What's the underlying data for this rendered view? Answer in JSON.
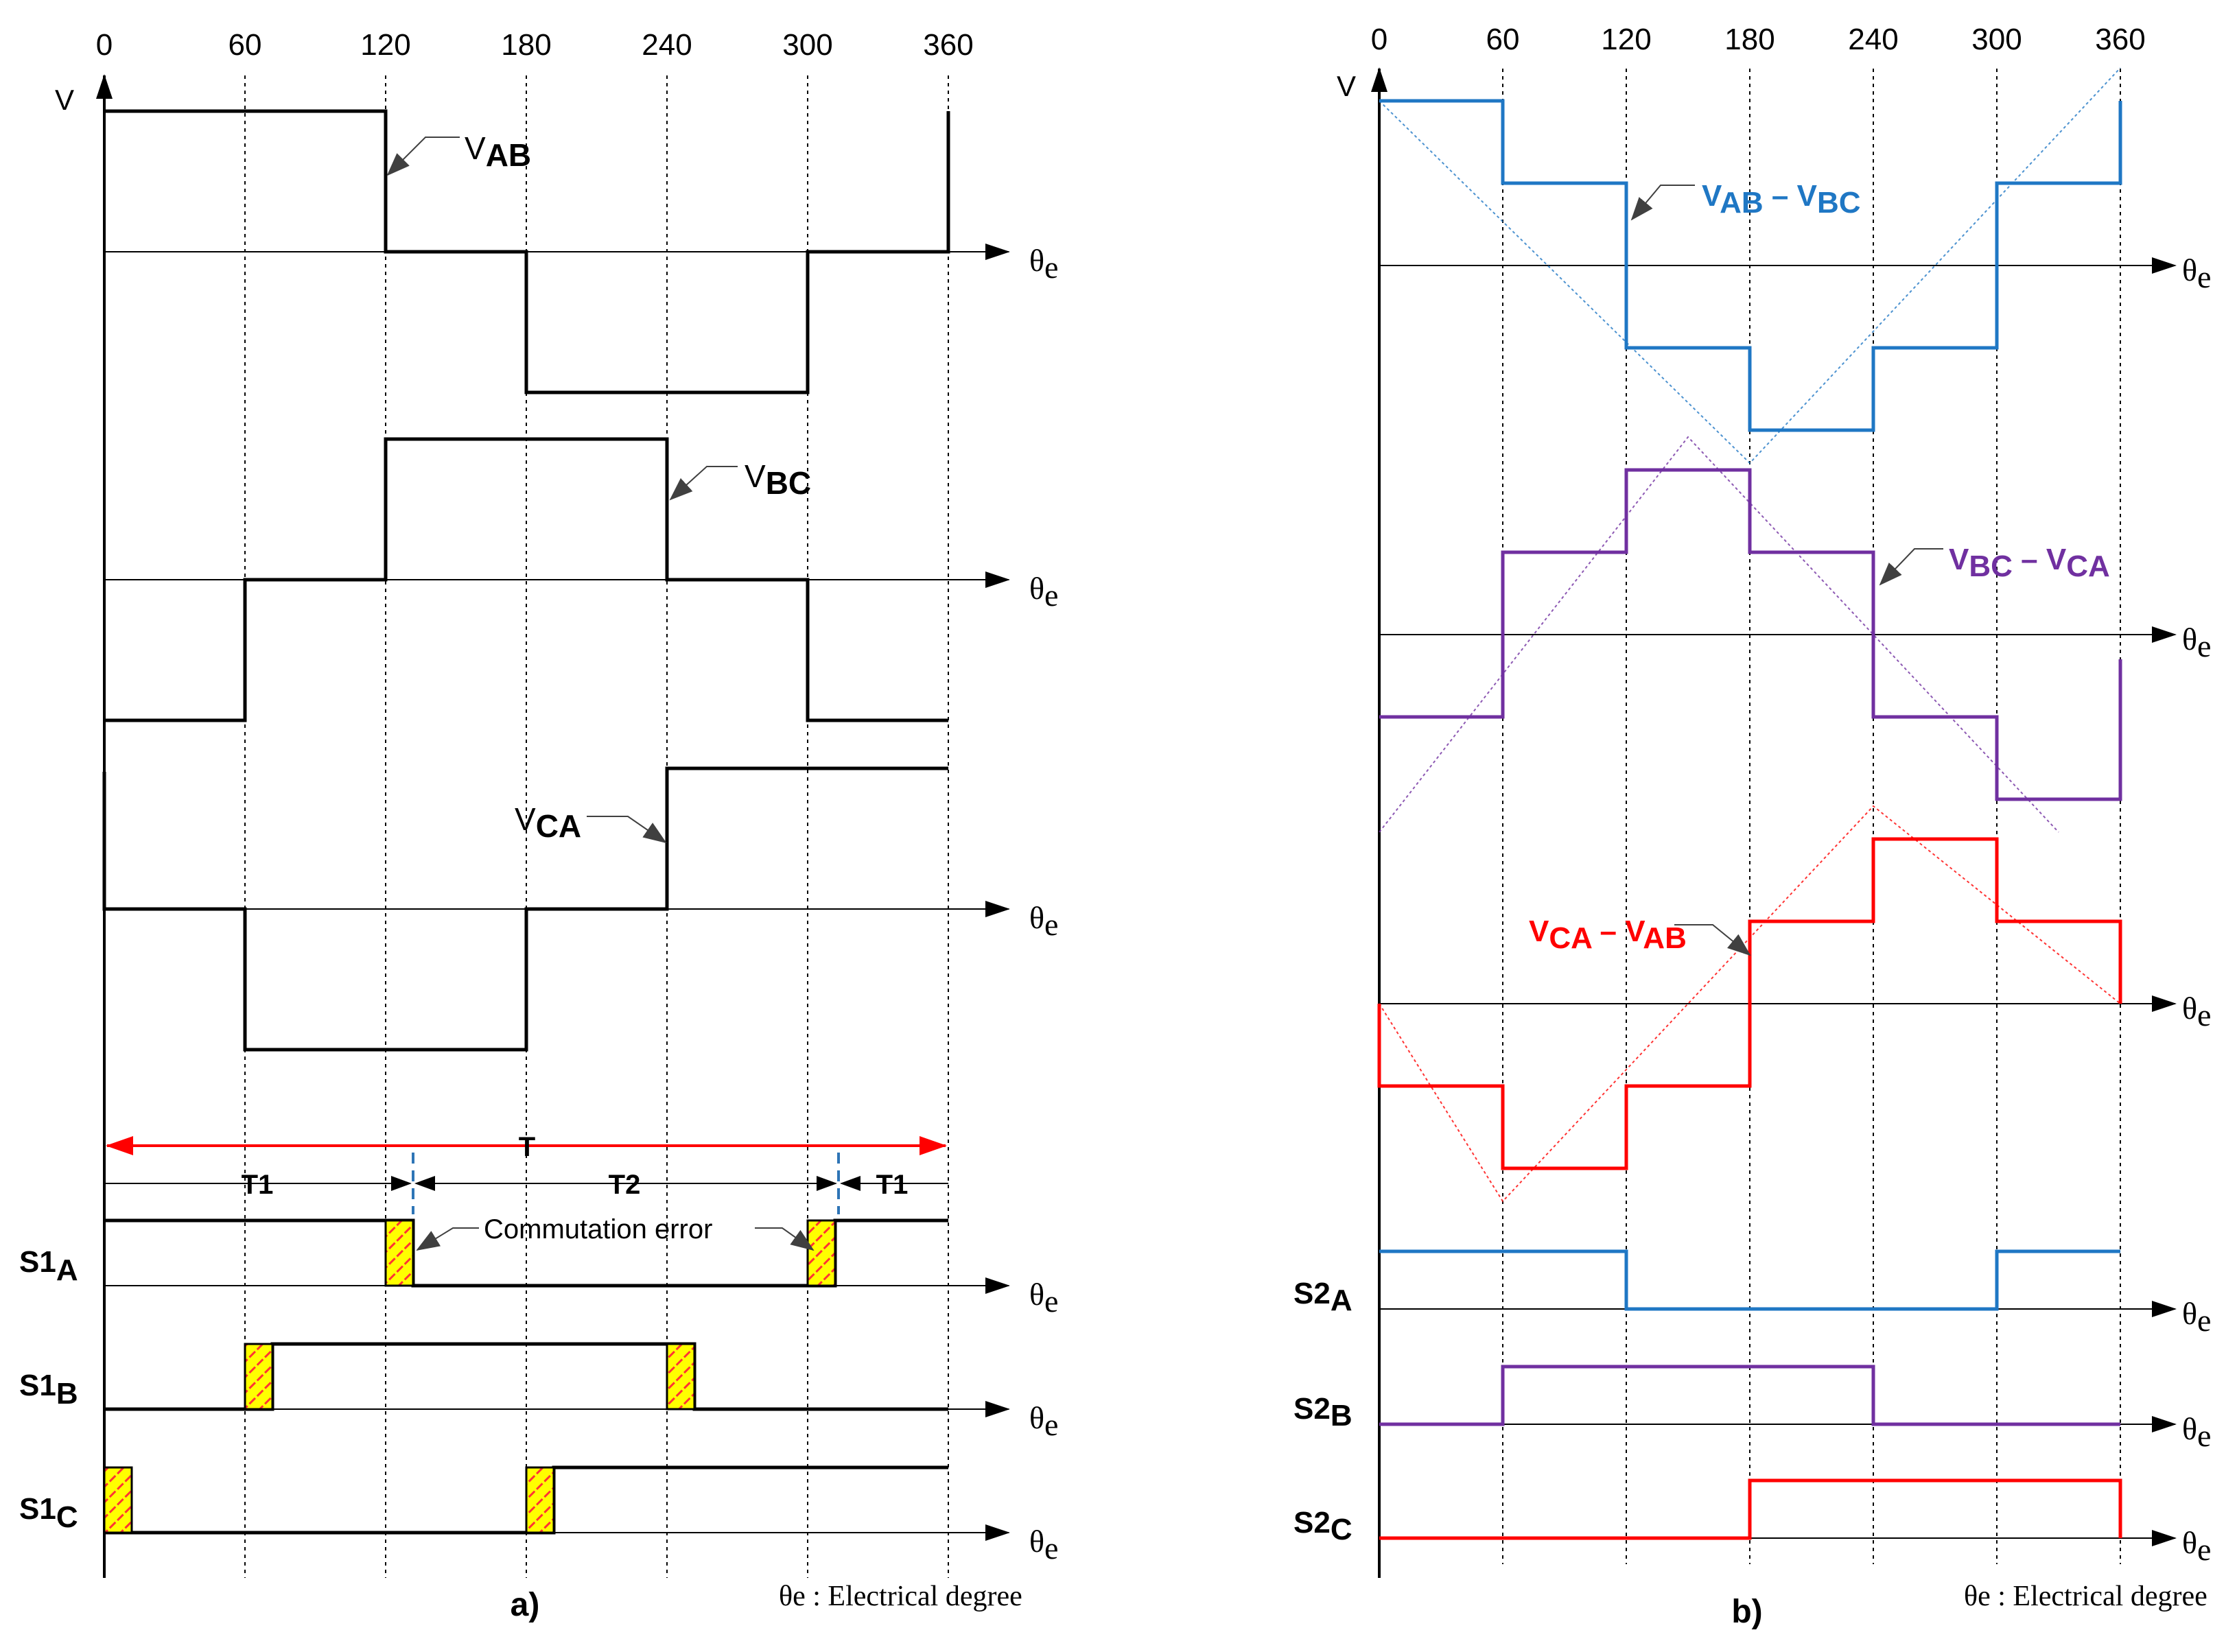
{
  "angles": [
    "0",
    "60",
    "120",
    "180",
    "240",
    "300",
    "360"
  ],
  "v_label": "V",
  "theta_label": "θ",
  "theta_sub": "e",
  "colors": {
    "blue": "#1f77c4",
    "purple": "#7030a0",
    "red": "#ff0000",
    "black": "#000000",
    "hatch_fill": "#ffff00",
    "hatch_line": "#ff3333",
    "period_arrow": "#ff0000",
    "marker": "#2e75b6"
  },
  "panel_a": {
    "caption": "a)",
    "footnote": "θe : Electrical degree",
    "waves": [
      {
        "main": "V",
        "sub": "AB",
        "levels": [
          1,
          1,
          0,
          -1,
          -1,
          0,
          1
        ]
      },
      {
        "main": "V",
        "sub": "BC",
        "levels": [
          -1,
          0,
          1,
          1,
          0,
          -1
        ]
      },
      {
        "main": "V",
        "sub": "CA",
        "levels": [
          0,
          -1,
          -1,
          0,
          1,
          1
        ]
      }
    ],
    "period": {
      "total": "T",
      "t1": "T1",
      "t2": "T2",
      "t1_end": "T1"
    },
    "error_label": "Commutation error",
    "switches": [
      {
        "main": "S1",
        "sub": "A",
        "states": [
          1,
          1,
          0,
          0,
          0,
          1
        ]
      },
      {
        "main": "S1",
        "sub": "B",
        "states": [
          0,
          1,
          1,
          1,
          0,
          0
        ]
      },
      {
        "main": "S1",
        "sub": "C",
        "states": [
          0,
          0,
          0,
          1,
          1,
          1
        ]
      }
    ]
  },
  "panel_b": {
    "caption": "b)",
    "footnote": "θe : Electrical degree",
    "waves": [
      {
        "t1": "V",
        "s1": "AB",
        "t2": "– V",
        "s2": "BC",
        "color": "blue",
        "levels": [
          2,
          1,
          -1,
          -2,
          -1,
          1,
          2
        ]
      },
      {
        "t1": "V",
        "s1": "BC",
        "t2": "– V",
        "s2": "CA",
        "color": "purple",
        "levels": [
          -1,
          1,
          2,
          1,
          -1,
          -2
        ]
      },
      {
        "t1": "V",
        "s1": "CA",
        "t2": "– V",
        "s2": "AB",
        "color": "red",
        "levels": [
          -1,
          -2,
          -1,
          1,
          2,
          1
        ]
      }
    ],
    "switches": [
      {
        "main": "S2",
        "sub": "A",
        "color": "blue",
        "states": [
          1,
          1,
          0,
          0,
          0,
          1
        ]
      },
      {
        "main": "S2",
        "sub": "B",
        "color": "purple",
        "states": [
          0,
          1,
          1,
          1,
          0,
          0
        ]
      },
      {
        "main": "S2",
        "sub": "C",
        "color": "red",
        "states": [
          0,
          0,
          0,
          1,
          1,
          1
        ]
      }
    ]
  }
}
